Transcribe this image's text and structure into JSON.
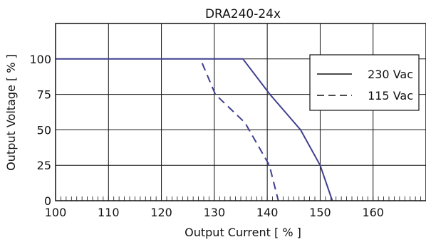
{
  "chart_data": {
    "type": "line",
    "title": "DRA240-24x",
    "xlabel": "Output Current [ % ]",
    "ylabel": "Output Voltage  [ % ]",
    "xlim": [
      100,
      170
    ],
    "ylim": [
      0,
      125
    ],
    "x_ticks": [
      100,
      110,
      120,
      130,
      140,
      150,
      160
    ],
    "y_ticks": [
      0,
      25,
      50,
      75,
      100
    ],
    "x_tick_labels": [
      "100",
      "110",
      "120",
      "130",
      "140",
      "150",
      "160"
    ],
    "y_tick_labels": [
      "0",
      "25",
      "50",
      "75",
      "100"
    ],
    "grid": true,
    "minor_x_ticks_step": 1,
    "legend_position": "top-right",
    "series": [
      {
        "name": "230 Vac",
        "style": "solid",
        "color": "#3f3f8f",
        "x": [
          100,
          135.4,
          140.5,
          146.3,
          150.0,
          152.3
        ],
        "y": [
          100,
          100,
          75,
          50,
          25,
          0
        ]
      },
      {
        "name": "115 Vac",
        "style": "dashed",
        "color": "#3f3f8f",
        "x": [
          127.7,
          130.2,
          135.8,
          140.4,
          142.1
        ],
        "y": [
          97,
          75,
          55,
          25,
          0
        ]
      }
    ]
  }
}
